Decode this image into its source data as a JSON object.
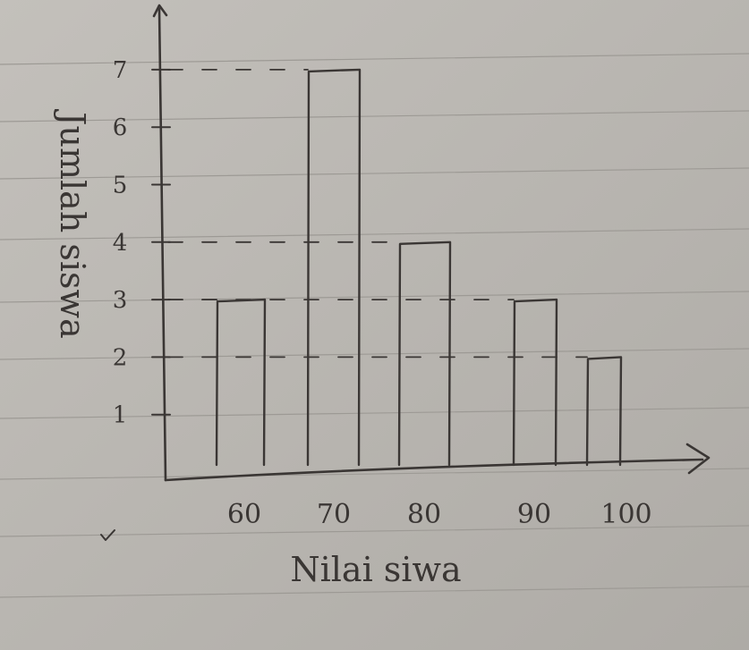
{
  "chart_data": {
    "type": "bar",
    "xlabel": "Nilai siwa",
    "ylabel": "Jumlah siswa",
    "categories": [
      "60",
      "70",
      "80",
      "90",
      "100"
    ],
    "values": [
      3,
      7,
      4,
      3,
      2
    ],
    "yticks": [
      "1",
      "2",
      "3",
      "4",
      "5",
      "6",
      "7"
    ],
    "ylim": [
      0,
      7
    ],
    "grid": false
  },
  "colors": {
    "paper": "#b9b6b1",
    "ink": "#3a3634",
    "rule": "#9d9a95",
    "margin_mark": "#3a3634"
  }
}
